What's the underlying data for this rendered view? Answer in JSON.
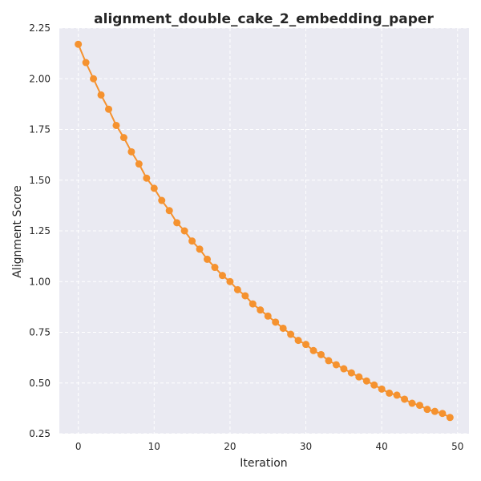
{
  "chart_data": {
    "type": "line",
    "title": "alignment_double_cake_2_embedding_paper",
    "xlabel": "Iteration",
    "ylabel": "Alignment Score",
    "xlim": [
      -2.5,
      51.5
    ],
    "ylim": [
      0.25,
      2.25
    ],
    "xticks": [
      "0",
      "10",
      "20",
      "30",
      "40",
      "50"
    ],
    "yticks": [
      "0.25",
      "0.50",
      "0.75",
      "1.00",
      "1.25",
      "1.50",
      "1.75",
      "2.00",
      "2.25"
    ],
    "grid": true,
    "colors": {
      "background": "#eaeaf2",
      "series": "#f5922f",
      "grid": "#ffffff"
    },
    "series": [
      {
        "x": [
          0,
          1,
          2,
          3,
          4,
          5,
          6,
          7,
          8,
          9,
          10,
          11,
          12,
          13,
          14,
          15,
          16,
          17,
          18,
          19,
          20,
          21,
          22,
          23,
          24,
          25,
          26,
          27,
          28,
          29,
          30,
          31,
          32,
          33,
          34,
          35,
          36,
          37,
          38,
          39,
          40,
          41,
          42,
          43,
          44,
          45,
          46,
          47,
          48,
          49
        ],
        "values": [
          2.17,
          2.08,
          2.0,
          1.92,
          1.85,
          1.77,
          1.71,
          1.64,
          1.58,
          1.51,
          1.46,
          1.4,
          1.35,
          1.29,
          1.25,
          1.2,
          1.16,
          1.11,
          1.07,
          1.03,
          1.0,
          0.96,
          0.93,
          0.89,
          0.86,
          0.83,
          0.8,
          0.77,
          0.74,
          0.71,
          0.69,
          0.66,
          0.64,
          0.61,
          0.59,
          0.57,
          0.55,
          0.53,
          0.51,
          0.49,
          0.47,
          0.45,
          0.44,
          0.42,
          0.4,
          0.39,
          0.37,
          0.36,
          0.35,
          0.33
        ]
      }
    ]
  }
}
